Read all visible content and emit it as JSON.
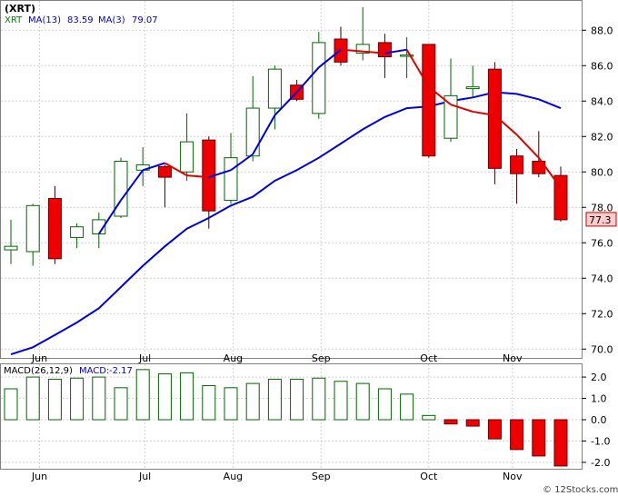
{
  "chart_data": [
    {
      "type": "candlestick",
      "title": "(XRT)",
      "ticker": "XRT",
      "ma13_label": "MA(13)",
      "ma13_value": "83.59",
      "ma3_label": "MA(3)",
      "ma3_value": "79.07",
      "last_price": "77.3",
      "ylim": [
        69.5,
        89.5
      ],
      "yticks": [
        "70.0",
        "72.0",
        "74.0",
        "76.0",
        "78.0",
        "80.0",
        "82.0",
        "84.0",
        "86.0",
        "88.0"
      ],
      "x_labels": [
        {
          "label": "Jun",
          "week": 1.3
        },
        {
          "label": "Jul",
          "week": 6.1
        },
        {
          "label": "Aug",
          "week": 10.1
        },
        {
          "label": "Sep",
          "week": 14.1
        },
        {
          "label": "Oct",
          "week": 19.0
        },
        {
          "label": "Nov",
          "week": 22.8
        }
      ],
      "candles": [
        {
          "o": 75.6,
          "h": 77.3,
          "l": 74.8,
          "c": 75.8
        },
        {
          "o": 75.5,
          "h": 78.2,
          "l": 74.7,
          "c": 78.1
        },
        {
          "o": 78.5,
          "h": 79.2,
          "l": 74.8,
          "c": 75.1
        },
        {
          "o": 76.3,
          "h": 77.1,
          "l": 75.7,
          "c": 76.9
        },
        {
          "o": 76.5,
          "h": 77.7,
          "l": 75.7,
          "c": 77.3
        },
        {
          "o": 77.5,
          "h": 80.8,
          "l": 77.4,
          "c": 80.6
        },
        {
          "o": 80.1,
          "h": 81.4,
          "l": 79.2,
          "c": 80.4
        },
        {
          "o": 80.3,
          "h": 80.4,
          "l": 78.0,
          "c": 79.7
        },
        {
          "o": 80.0,
          "h": 83.3,
          "l": 79.5,
          "c": 81.7
        },
        {
          "o": 81.8,
          "h": 82.0,
          "l": 76.8,
          "c": 77.8
        },
        {
          "o": 78.4,
          "h": 82.2,
          "l": 78.2,
          "c": 80.8
        },
        {
          "o": 80.9,
          "h": 85.4,
          "l": 80.6,
          "c": 83.6
        },
        {
          "o": 83.6,
          "h": 86.0,
          "l": 82.4,
          "c": 85.8
        },
        {
          "o": 84.9,
          "h": 85.2,
          "l": 84.0,
          "c": 84.1
        },
        {
          "o": 83.3,
          "h": 87.9,
          "l": 83.0,
          "c": 87.3
        },
        {
          "o": 87.5,
          "h": 88.2,
          "l": 86.0,
          "c": 86.2
        },
        {
          "o": 86.7,
          "h": 89.3,
          "l": 86.3,
          "c": 87.2
        },
        {
          "o": 87.3,
          "h": 87.8,
          "l": 85.3,
          "c": 86.5
        },
        {
          "o": 86.6,
          "h": 87.6,
          "l": 85.3,
          "c": 86.6
        },
        {
          "o": 87.2,
          "h": 87.2,
          "l": 80.8,
          "c": 80.9
        },
        {
          "o": 81.9,
          "h": 86.4,
          "l": 81.7,
          "c": 84.3
        },
        {
          "o": 84.7,
          "h": 86.0,
          "l": 84.2,
          "c": 84.8
        },
        {
          "o": 85.8,
          "h": 86.2,
          "l": 79.3,
          "c": 80.2
        },
        {
          "o": 80.9,
          "h": 81.3,
          "l": 78.2,
          "c": 79.9
        },
        {
          "o": 80.6,
          "h": 82.3,
          "l": 79.7,
          "c": 79.9
        },
        {
          "o": 79.8,
          "h": 80.3,
          "l": 77.2,
          "c": 77.3
        }
      ],
      "ma13": [
        69.7,
        70.1,
        70.8,
        71.5,
        72.3,
        73.5,
        74.7,
        75.8,
        76.8,
        77.4,
        78.1,
        78.6,
        79.5,
        80.1,
        80.8,
        81.6,
        82.4,
        83.1,
        83.6,
        83.7,
        84.0,
        84.2,
        84.5,
        84.4,
        84.1,
        83.6
      ],
      "ma3": [
        null,
        null,
        null,
        null,
        76.5,
        78.4,
        80.1,
        80.5,
        79.8,
        79.7,
        80.1,
        81.0,
        83.2,
        84.5,
        85.9,
        86.9,
        86.8,
        86.7,
        86.9,
        84.8,
        83.8,
        83.4,
        83.2,
        82.1,
        80.8,
        79.1
      ],
      "ma13_start_week": 0,
      "ma3_start_week": 4
    },
    {
      "type": "bar",
      "title": "MACD(26,12,9)",
      "macd_label": "MACD:",
      "macd_value": "-2.17",
      "ylim": [
        -2.3,
        2.6
      ],
      "yticks": [
        "2.0",
        "1.0",
        "0.0",
        "-1.0",
        "-2.0"
      ],
      "values": [
        1.45,
        2.0,
        1.9,
        1.95,
        2.0,
        1.5,
        2.35,
        2.15,
        2.2,
        1.6,
        1.5,
        1.7,
        1.9,
        1.9,
        1.95,
        1.8,
        1.7,
        1.45,
        1.2,
        0.2,
        -0.2,
        -0.3,
        -0.9,
        -1.4,
        -1.7,
        -2.17
      ]
    }
  ]
}
